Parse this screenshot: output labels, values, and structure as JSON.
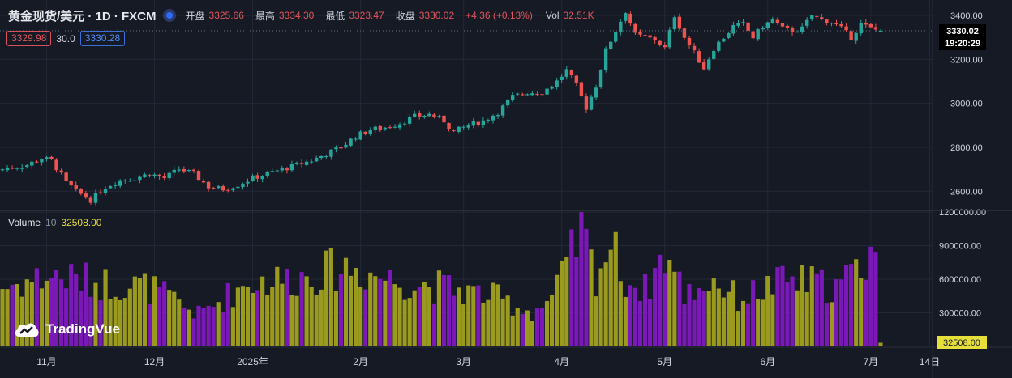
{
  "header": {
    "title": "黄金现货/美元 · 1D · FXCM",
    "open_label": "开盘",
    "open_value": "3325.66",
    "high_label": "最高",
    "high_value": "3334.30",
    "low_label": "最低",
    "low_value": "3323.47",
    "close_label": "收盘",
    "close_value": "3330.02",
    "change": "+4.36 (+0.13%)",
    "vol_label": "Vol",
    "vol_value": "32.51K"
  },
  "indicator_legend": {
    "ma_fast_value": "3329.98",
    "ma_period": "30.0",
    "ma_slow_value": "3330.28"
  },
  "volume_legend": {
    "name": "Volume",
    "period": "10",
    "value": "32508.00"
  },
  "price_tag": {
    "price": "3330.02",
    "countdown": "19:20:29"
  },
  "volume_tag": "32508.00",
  "logo_text": "TradingVue",
  "colors": {
    "up": "#26a69a",
    "down": "#ef5350",
    "vol_up": "#9a9a1f",
    "vol_down": "#7a18b8",
    "background": "#161a25"
  },
  "chart_data": [
    {
      "type": "candlestick",
      "title": "黄金现货/美元 · 1D · FXCM",
      "ylim": [
        2520,
        3470
      ],
      "price_ticks": [
        "3400.00",
        "3200.00",
        "3000.00",
        "2800.00",
        "2600.00"
      ],
      "price_tick_values": [
        3400,
        3200,
        3000,
        2800,
        2600
      ],
      "time_labels": [
        "11月",
        "12月",
        "2025年",
        "2月",
        "3月",
        "4月",
        "5月",
        "6月",
        "7月",
        "14日"
      ],
      "time_label_bars": [
        9,
        31,
        51,
        73,
        94,
        114,
        135,
        156,
        177,
        189
      ],
      "close_anchors": [
        [
          0,
          2700
        ],
        [
          5,
          2720
        ],
        [
          8,
          2750
        ],
        [
          10,
          2740
        ],
        [
          13,
          2640
        ],
        [
          15,
          2600
        ],
        [
          18,
          2560
        ],
        [
          21,
          2620
        ],
        [
          24,
          2650
        ],
        [
          27,
          2660
        ],
        [
          30,
          2680
        ],
        [
          33,
          2660
        ],
        [
          36,
          2700
        ],
        [
          39,
          2680
        ],
        [
          42,
          2620
        ],
        [
          45,
          2610
        ],
        [
          48,
          2630
        ],
        [
          51,
          2660
        ],
        [
          54,
          2680
        ],
        [
          57,
          2700
        ],
        [
          60,
          2720
        ],
        [
          63,
          2740
        ],
        [
          66,
          2770
        ],
        [
          69,
          2800
        ],
        [
          72,
          2850
        ],
        [
          75,
          2880
        ],
        [
          78,
          2890
        ],
        [
          81,
          2910
        ],
        [
          84,
          2940
        ],
        [
          87,
          2950
        ],
        [
          90,
          2920
        ],
        [
          92,
          2870
        ],
        [
          95,
          2900
        ],
        [
          98,
          2920
        ],
        [
          101,
          2960
        ],
        [
          104,
          3030
        ],
        [
          107,
          3050
        ],
        [
          110,
          3050
        ],
        [
          113,
          3100
        ],
        [
          115,
          3150
        ],
        [
          117,
          3080
        ],
        [
          119,
          2980
        ],
        [
          121,
          3080
        ],
        [
          123,
          3240
        ],
        [
          125,
          3330
        ],
        [
          127,
          3420
        ],
        [
          129,
          3310
        ],
        [
          131,
          3300
        ],
        [
          133,
          3290
        ],
        [
          135,
          3250
        ],
        [
          137,
          3400
        ],
        [
          139,
          3300
        ],
        [
          141,
          3230
        ],
        [
          143,
          3160
        ],
        [
          145,
          3250
        ],
        [
          147,
          3300
        ],
        [
          149,
          3350
        ],
        [
          151,
          3360
        ],
        [
          153,
          3300
        ],
        [
          155,
          3350
        ],
        [
          157,
          3380
        ],
        [
          159,
          3340
        ],
        [
          161,
          3330
        ],
        [
          163,
          3340
        ],
        [
          165,
          3400
        ],
        [
          167,
          3380
        ],
        [
          169,
          3370
        ],
        [
          171,
          3340
        ],
        [
          173,
          3300
        ],
        [
          175,
          3360
        ],
        [
          177,
          3340
        ],
        [
          179,
          3330
        ]
      ],
      "last_close": 3330.02,
      "bar_count": 180
    },
    {
      "type": "bar",
      "title": "Volume 10",
      "ylim": [
        0,
        1200000
      ],
      "ticks": [
        "1200000.00",
        "900000.00",
        "600000.00",
        "300000.00"
      ],
      "tick_values": [
        1200000,
        900000,
        600000,
        300000
      ],
      "volume_anchors": [
        [
          0,
          520000
        ],
        [
          10,
          620000
        ],
        [
          20,
          560000
        ],
        [
          30,
          520000
        ],
        [
          40,
          280000
        ],
        [
          50,
          560000
        ],
        [
          60,
          600000
        ],
        [
          70,
          700000
        ],
        [
          80,
          580000
        ],
        [
          90,
          520000
        ],
        [
          100,
          440000
        ],
        [
          108,
          300000
        ],
        [
          112,
          420000
        ],
        [
          115,
          700000
        ],
        [
          118,
          1000000
        ],
        [
          121,
          620000
        ],
        [
          124,
          900000
        ],
        [
          127,
          580000
        ],
        [
          131,
          500000
        ],
        [
          135,
          820000
        ],
        [
          139,
          460000
        ],
        [
          145,
          580000
        ],
        [
          150,
          420000
        ],
        [
          155,
          500000
        ],
        [
          160,
          580000
        ],
        [
          165,
          560000
        ],
        [
          170,
          520000
        ],
        [
          175,
          700000
        ],
        [
          178,
          900000
        ]
      ],
      "last_volume": 32508
    }
  ]
}
